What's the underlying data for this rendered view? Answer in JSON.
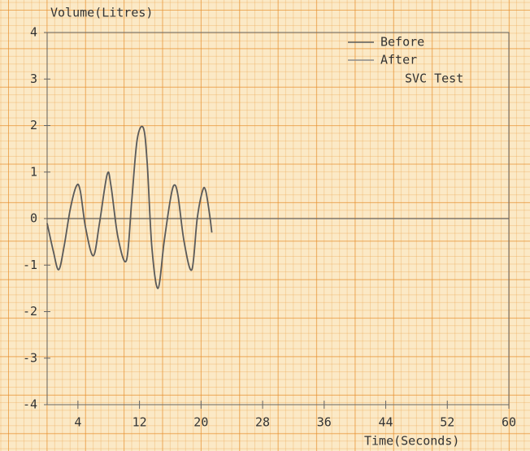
{
  "chart_data": {
    "type": "line",
    "y_label": "Volume(Litres)",
    "x_label": "Time(Seconds)",
    "annotation": "SVC Test",
    "x": [
      0,
      0.8,
      1.5,
      2.2,
      3,
      3.8,
      4.3,
      5,
      6,
      6.8,
      7.8,
      8.3,
      9.2,
      10.3,
      11,
      11.7,
      12.5,
      13,
      13.6,
      14.4,
      15.2,
      16,
      16.5,
      17,
      17.8,
      18.8,
      19.5,
      20.2,
      20.6,
      21.1,
      21.4
    ],
    "series": [
      {
        "name": "Before",
        "color": "#5a5a5a",
        "values": [
          -0.1,
          -0.7,
          -1.1,
          -0.6,
          0.2,
          0.7,
          0.6,
          -0.2,
          -0.8,
          -0.1,
          0.95,
          0.7,
          -0.4,
          -0.9,
          0.4,
          1.7,
          1.95,
          1.2,
          -0.6,
          -1.5,
          -0.5,
          0.4,
          0.72,
          0.5,
          -0.5,
          -1.1,
          0,
          0.6,
          0.6,
          0.1,
          -0.3
        ]
      },
      {
        "name": "After",
        "color": "#8a8a8a",
        "values": [
          null,
          null,
          null,
          null,
          null,
          null,
          null,
          null,
          null,
          null,
          null,
          null,
          null,
          null,
          null,
          null,
          null,
          null,
          null,
          null,
          null,
          null,
          null,
          null,
          null,
          null,
          null,
          null,
          null,
          null,
          null
        ]
      }
    ],
    "xlim": [
      0,
      60
    ],
    "xticks": [
      4,
      12,
      20,
      28,
      36,
      44,
      52,
      60
    ],
    "ylim": [
      -4,
      4
    ],
    "yticks": [
      -4,
      -3,
      -2,
      -1,
      0,
      1,
      2,
      3,
      4
    ],
    "grid": true
  }
}
